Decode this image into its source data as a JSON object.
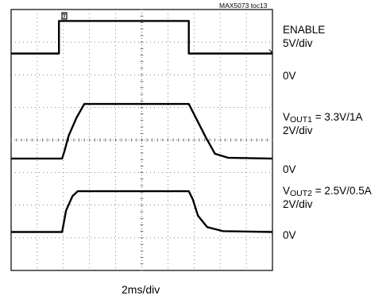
{
  "figure_tag": "MAX5073 toc13",
  "x_label": "2ms/div",
  "trigger_marker": "T",
  "channels": [
    {
      "title": "ENABLE",
      "scale": "5V/div",
      "ground": "0V"
    },
    {
      "title_prefix": "V",
      "title_sub": "OUT1",
      "title_suffix": " = 3.3V/1A",
      "scale": "2V/div",
      "ground": "0V"
    },
    {
      "title_prefix": "V",
      "title_sub": "OUT2",
      "title_suffix": " = 2.5V/0.5A",
      "scale": "2V/div",
      "ground": "0V"
    }
  ],
  "chart_data": {
    "type": "line",
    "title": "",
    "xlabel": "2ms/div",
    "x_unit": "div",
    "xlim": [
      0,
      10
    ],
    "ylim": [
      0,
      8
    ],
    "grid": true,
    "grid_divisions": {
      "x": 10,
      "y": 8
    },
    "series": [
      {
        "name": "ENABLE",
        "ground_div": 6.65,
        "volts_per_div": 5,
        "points": [
          [
            0,
            0
          ],
          [
            1.83,
            0
          ],
          [
            1.83,
            5.0
          ],
          [
            6.8,
            5.0
          ],
          [
            6.8,
            0
          ],
          [
            10,
            0
          ]
        ]
      },
      {
        "name": "VOUT1",
        "ground_div": 3.43,
        "volts_per_div": 2,
        "points": [
          [
            0,
            0
          ],
          [
            1.95,
            0
          ],
          [
            2.05,
            0.5
          ],
          [
            2.2,
            1.4
          ],
          [
            2.5,
            2.5
          ],
          [
            2.8,
            3.35
          ],
          [
            6.8,
            3.35
          ],
          [
            7.1,
            2.4
          ],
          [
            7.45,
            1.3
          ],
          [
            7.8,
            0.3
          ],
          [
            8.3,
            0.05
          ],
          [
            10,
            0
          ]
        ]
      },
      {
        "name": "VOUT2",
        "ground_div": 1.18,
        "volts_per_div": 2,
        "points": [
          [
            0,
            0
          ],
          [
            1.95,
            0
          ],
          [
            2.1,
            1.3
          ],
          [
            2.35,
            2.2
          ],
          [
            2.55,
            2.5
          ],
          [
            6.8,
            2.5
          ],
          [
            6.95,
            2.0
          ],
          [
            7.15,
            1.0
          ],
          [
            7.5,
            0.3
          ],
          [
            8.1,
            0.05
          ],
          [
            10,
            0
          ]
        ]
      }
    ]
  }
}
